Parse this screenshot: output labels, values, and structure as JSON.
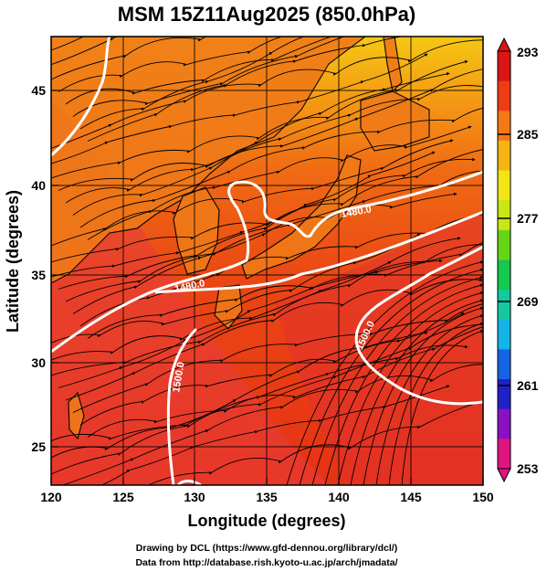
{
  "title": "MSM 15Z11Aug2025 (850.0hPa)",
  "x_axis": {
    "label": "Longitude (degrees)",
    "range": [
      120,
      150
    ],
    "ticks": [
      "120",
      "125",
      "130",
      "135",
      "140",
      "145",
      "150"
    ]
  },
  "y_axis": {
    "label": "Latitude  (degrees)",
    "range": [
      22.5,
      47.5
    ],
    "ticks": [
      "25",
      "30",
      "35",
      "40",
      "45"
    ]
  },
  "colorbar": {
    "ticks": [
      "293",
      "285",
      "277",
      "269",
      "261",
      "253"
    ],
    "colors": [
      "#e0147e",
      "#8a10c4",
      "#2020c8",
      "#1464e6",
      "#14b4e6",
      "#14c8a0",
      "#14c850",
      "#64d614",
      "#c8e614",
      "#f0e614",
      "#f5b414",
      "#f57814",
      "#f03c14",
      "#dc1414"
    ]
  },
  "contours": [
    {
      "label": "1480.0"
    },
    {
      "label": "1480.0"
    },
    {
      "label": "1500.0"
    },
    {
      "label": "1500.0"
    }
  ],
  "credits": {
    "line1": "Drawing by DCL (https://www.gfd-dennou.org/library/dcl/)",
    "line2": "Data from http://database.rish.kyoto-u.ac.jp/arch/jmadata/"
  }
}
